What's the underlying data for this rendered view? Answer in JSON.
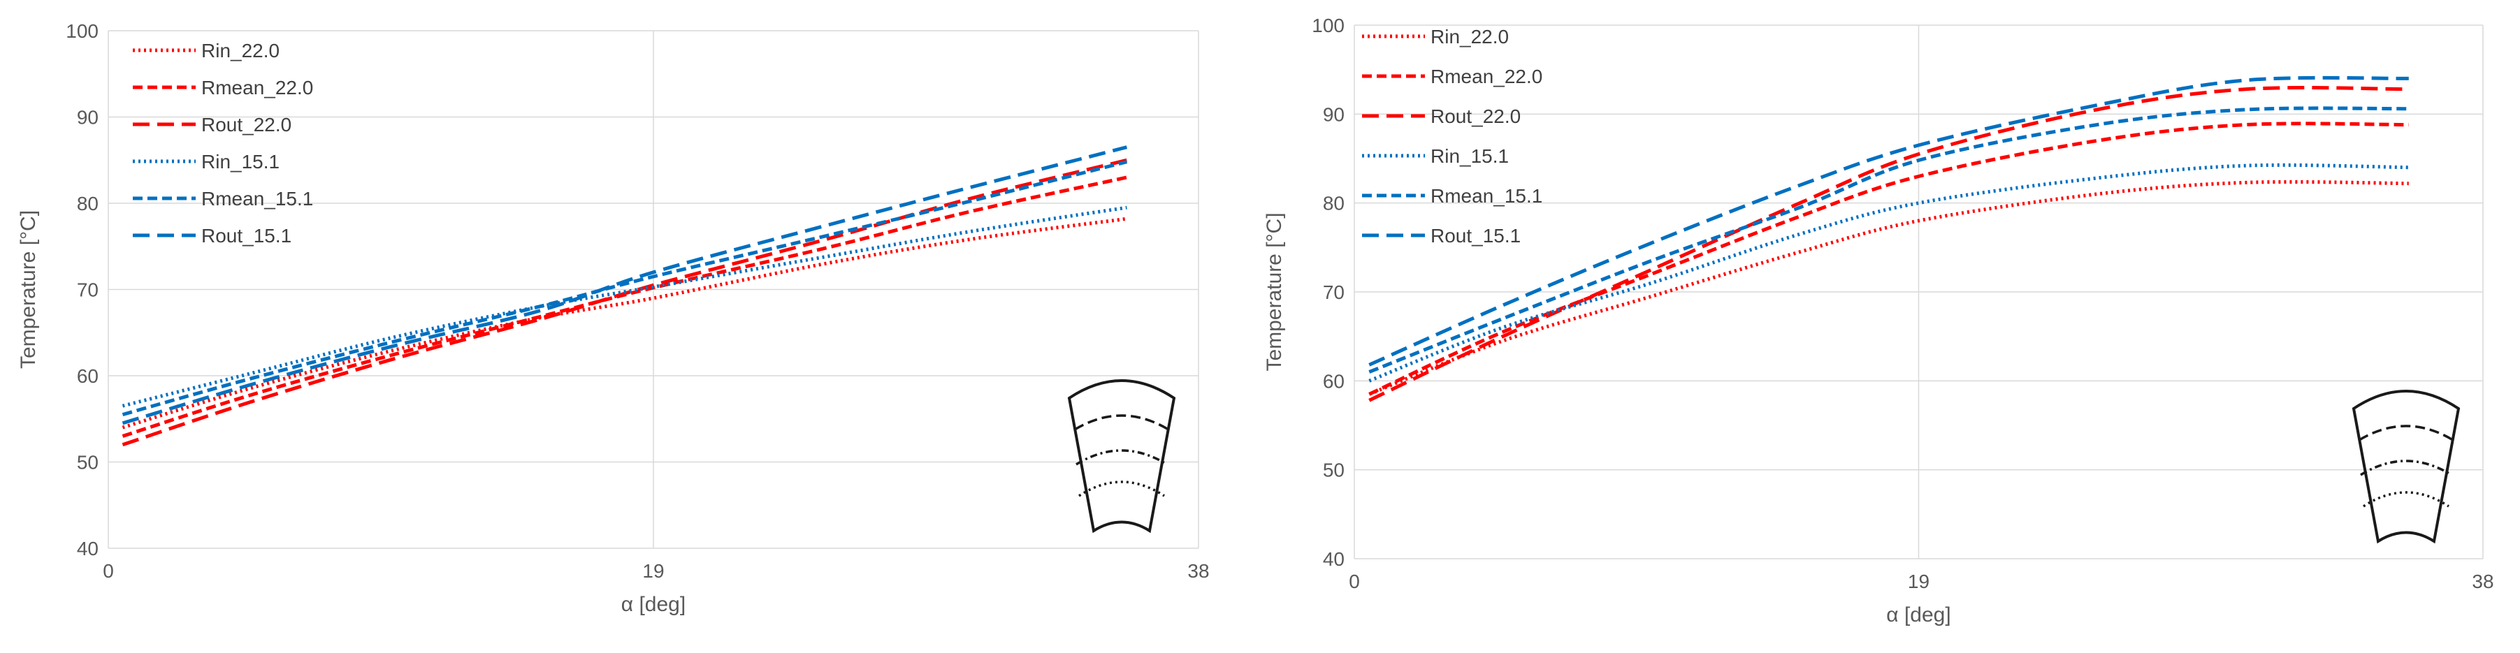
{
  "chart_data": [
    {
      "type": "line",
      "title": "",
      "xlabel": "α [deg]",
      "ylabel": "Temperature [°C]",
      "xlim": [
        0,
        38
      ],
      "ylim": [
        40,
        100
      ],
      "xticks": [
        "0",
        "19",
        "38"
      ],
      "yticks": [
        "40",
        "50",
        "60",
        "70",
        "80",
        "90",
        "100"
      ],
      "grid": true,
      "legend": "top-left",
      "x": [
        0.5,
        5,
        10,
        15,
        19,
        25,
        30,
        35.5
      ],
      "series": [
        {
          "name": "Rin_22.0",
          "color": "#ff0000",
          "style": "dotted",
          "values": [
            54.0,
            58.6,
            63.0,
            66.7,
            69.0,
            73.0,
            75.8,
            78.2
          ]
        },
        {
          "name": "Rmean_22.0",
          "color": "#ff0000",
          "style": "dashed",
          "values": [
            53.0,
            57.8,
            62.5,
            66.8,
            70.2,
            74.8,
            79.0,
            83.0
          ]
        },
        {
          "name": "Rout_22.0",
          "color": "#ff0000",
          "style": "longdash",
          "values": [
            52.0,
            57.0,
            62.0,
            66.5,
            70.5,
            75.8,
            80.5,
            85.0
          ]
        },
        {
          "name": "Rin_15.1",
          "color": "#0070c0",
          "style": "dotted",
          "values": [
            56.5,
            60.3,
            64.5,
            68.0,
            70.3,
            73.8,
            76.7,
            79.5
          ]
        },
        {
          "name": "Rmean_15.1",
          "color": "#0070c0",
          "style": "dashed",
          "values": [
            55.5,
            59.7,
            64.0,
            68.0,
            71.5,
            76.2,
            80.2,
            84.8
          ]
        },
        {
          "name": "Rout_15.1",
          "color": "#0070c0",
          "style": "longdash",
          "values": [
            54.5,
            59.0,
            63.5,
            67.5,
            72.0,
            77.4,
            81.8,
            86.5
          ]
        }
      ]
    },
    {
      "type": "line",
      "title": "",
      "xlabel": "α [deg]",
      "ylabel": "Temperature [°C]",
      "xlim": [
        0,
        38
      ],
      "ylim": [
        40,
        100
      ],
      "xticks": [
        "0",
        "19",
        "38"
      ],
      "yticks": [
        "40",
        "50",
        "60",
        "70",
        "80",
        "90",
        "100"
      ],
      "grid": true,
      "legend": "top-left",
      "x": [
        0.5,
        5,
        10,
        15,
        19,
        25,
        30,
        35.5
      ],
      "series": [
        {
          "name": "Rin_22.0",
          "color": "#ff0000",
          "style": "dotted",
          "values": [
            58.5,
            64.5,
            69.5,
            74.5,
            78.0,
            81.0,
            82.3,
            82.2
          ]
        },
        {
          "name": "Rmean_22.0",
          "color": "#ff0000",
          "style": "dashed",
          "values": [
            58.5,
            65.5,
            72.0,
            78.5,
            83.0,
            87.0,
            88.8,
            88.8
          ]
        },
        {
          "name": "Rout_22.0",
          "color": "#ff0000",
          "style": "longdash",
          "values": [
            57.8,
            65.0,
            72.5,
            80.0,
            85.5,
            90.5,
            92.8,
            92.8
          ]
        },
        {
          "name": "Rin_15.1",
          "color": "#0070c0",
          "style": "dotted",
          "values": [
            60.0,
            66.0,
            71.0,
            76.5,
            80.0,
            82.8,
            84.2,
            84.0
          ]
        },
        {
          "name": "Rmean_15.1",
          "color": "#0070c0",
          "style": "dashed",
          "values": [
            61.0,
            67.0,
            73.5,
            79.5,
            84.8,
            88.8,
            90.5,
            90.6
          ]
        },
        {
          "name": "Rout_15.1",
          "color": "#0070c0",
          "style": "longdash",
          "values": [
            61.8,
            68.5,
            75.5,
            82.0,
            86.5,
            91.0,
            93.8,
            94.0
          ]
        }
      ]
    }
  ]
}
